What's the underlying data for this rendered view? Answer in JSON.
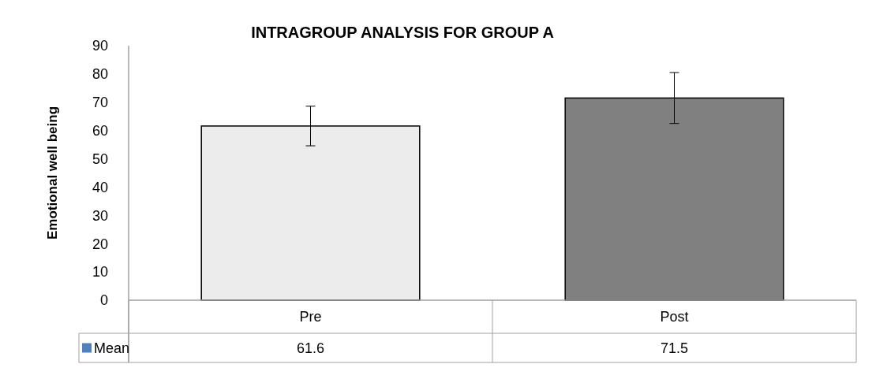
{
  "chart_data": {
    "type": "bar",
    "title": "INTRAGROUP ANALYSIS FOR GROUP A",
    "ylabel": "Emotional well being",
    "categories": [
      "Pre",
      "Post"
    ],
    "series": [
      {
        "name": "Mean",
        "color": "#4f81bd",
        "colors": [
          "#ececec",
          "#808080"
        ],
        "values": [
          61.6,
          71.5
        ],
        "errors": [
          7,
          9
        ]
      }
    ],
    "ylim": [
      0,
      90
    ],
    "yticks": [
      0,
      10,
      20,
      30,
      40,
      50,
      60,
      70,
      80,
      90
    ],
    "data_labels": true,
    "legend": "bottom",
    "grid": false
  }
}
